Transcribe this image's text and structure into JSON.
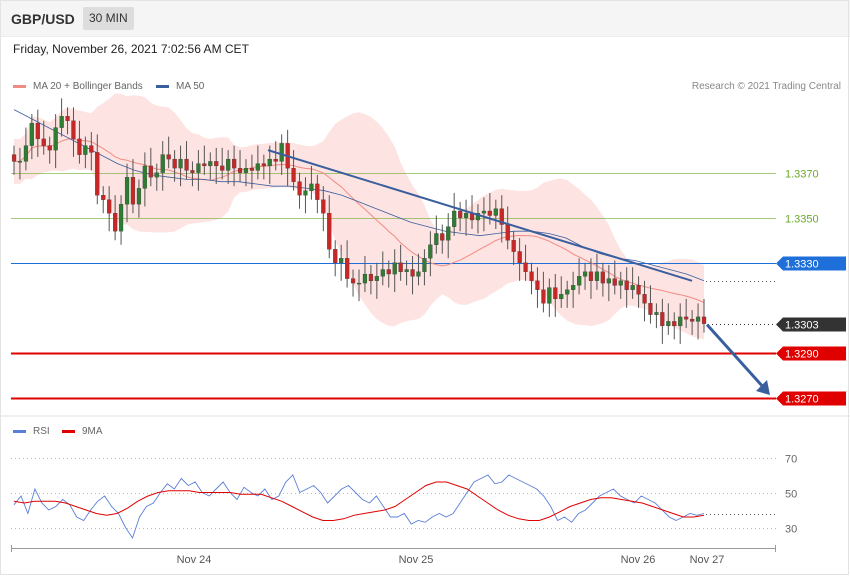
{
  "header": {
    "symbol": "GBP/USD",
    "timeframe": "30 MIN"
  },
  "timestamp": "Friday, November 26, 2021 7:02:56 AM CET",
  "price_legend": [
    {
      "label": "MA 20 + Bollinger Bands",
      "color": "#f28b82"
    },
    {
      "label": "MA 50",
      "color": "#3a5f9e"
    }
  ],
  "credit": "Research © 2021 Trading Central",
  "rsi_legend": [
    {
      "label": "RSI",
      "color": "#5b7fd6"
    },
    {
      "label": "9MA",
      "color": "#e00000"
    }
  ],
  "chart_data": [
    {
      "type": "candlestick",
      "symbol": "GBP/USD",
      "timeframe": "30 MIN",
      "x_tick_labels": [
        "Nov 24",
        "Nov 25",
        "Nov 26",
        "Nov 27"
      ],
      "ylim": [
        1.3262,
        1.342
      ],
      "close_path": [
        1.3375,
        1.3375,
        1.3382,
        1.3392,
        1.3385,
        1.3382,
        1.338,
        1.339,
        1.3395,
        1.3393,
        1.3385,
        1.3378,
        1.3382,
        1.3379,
        1.336,
        1.3358,
        1.3352,
        1.3344,
        1.3356,
        1.3368,
        1.3356,
        1.3363,
        1.3373,
        1.3368,
        1.337,
        1.3378,
        1.3376,
        1.3372,
        1.3376,
        1.3371,
        1.337,
        1.3374,
        1.3373,
        1.3375,
        1.3373,
        1.3371,
        1.3376,
        1.3372,
        1.337,
        1.3372,
        1.3371,
        1.3374,
        1.3373,
        1.3376,
        1.3375,
        1.3383,
        1.3372,
        1.3366,
        1.336,
        1.3362,
        1.3365,
        1.3358,
        1.3352,
        1.3336,
        1.333,
        1.3332,
        1.3323,
        1.3321,
        1.3321,
        1.3325,
        1.3322,
        1.3324,
        1.3327,
        1.3325,
        1.333,
        1.3326,
        1.3327,
        1.3324,
        1.3326,
        1.3332,
        1.3338,
        1.3343,
        1.334,
        1.3346,
        1.3353,
        1.335,
        1.3352,
        1.3349,
        1.3352,
        1.3353,
        1.3351,
        1.3354,
        1.3347,
        1.334,
        1.3335,
        1.333,
        1.3326,
        1.3322,
        1.3318,
        1.3312,
        1.3319,
        1.3314,
        1.3316,
        1.3318,
        1.332,
        1.3324,
        1.3326,
        1.3322,
        1.3326,
        1.3321,
        1.3323,
        1.332,
        1.3322,
        1.3318,
        1.332,
        1.3316,
        1.3312,
        1.3307,
        1.3308,
        1.3302,
        1.3304,
        1.3302,
        1.3306,
        1.3305,
        1.3304,
        1.3306,
        1.3303
      ],
      "ma50_path": [
        1.3398,
        1.3394,
        1.339,
        1.3386,
        1.3382,
        1.3378,
        1.3374,
        1.3371,
        1.3369,
        1.3368,
        1.3367,
        1.3367,
        1.3366,
        1.3366,
        1.3365,
        1.3364,
        1.3364,
        1.3363,
        1.3362,
        1.336,
        1.3357,
        1.3354,
        1.3351,
        1.3348,
        1.3346,
        1.3344,
        1.3343,
        1.3342,
        1.3343,
        1.3344,
        1.3344,
        1.3343,
        1.3341,
        1.3337,
        1.3334,
        1.3332,
        1.3331,
        1.3329,
        1.3327,
        1.3325,
        1.3322
      ],
      "levels": [
        {
          "price": "1.3370",
          "kind": "resistance",
          "color": "#6aaa2a"
        },
        {
          "price": "1.3350",
          "kind": "resistance",
          "color": "#6aaa2a"
        },
        {
          "price": "1.3330",
          "kind": "pivot",
          "color": "#1e6fd9"
        },
        {
          "price": "1.3303",
          "kind": "last",
          "color": "#333333"
        },
        {
          "price": "1.3290",
          "kind": "support",
          "color": "#e00000"
        },
        {
          "price": "1.3270",
          "kind": "support",
          "color": "#e00000"
        }
      ],
      "trendline": {
        "from": {
          "x": "Nov 24",
          "price": 1.338
        },
        "to": {
          "x": "Nov 26",
          "price": 1.3322
        }
      },
      "projection_arrow": {
        "from": 1.3303,
        "to": 1.327
      }
    },
    {
      "type": "line",
      "name": "RSI",
      "y_tick_labels": [
        "70",
        "50",
        "30"
      ],
      "ylim": [
        20,
        80
      ],
      "series": [
        {
          "name": "RSI",
          "values": [
            43,
            48,
            38,
            52,
            44,
            40,
            42,
            46,
            43,
            36,
            34,
            40,
            45,
            48,
            42,
            38,
            30,
            24,
            36,
            42,
            44,
            50,
            55,
            52,
            58,
            54,
            56,
            50,
            48,
            52,
            56,
            50,
            46,
            53,
            50,
            48,
            52,
            46,
            48,
            56,
            60,
            50,
            52,
            54,
            50,
            44,
            48,
            52,
            54,
            50,
            46,
            44,
            48,
            42,
            36,
            36,
            38,
            32,
            34,
            33,
            36,
            38,
            36,
            38,
            44,
            50,
            56,
            58,
            60,
            55,
            56,
            60,
            58,
            56,
            54,
            52,
            48,
            42,
            34,
            36,
            33,
            38,
            40,
            44,
            48,
            50,
            52,
            48,
            46,
            44,
            48,
            46,
            44,
            40,
            36,
            34,
            36,
            38,
            37,
            38
          ]
        },
        {
          "name": "9MA",
          "values": [
            45,
            44,
            45,
            45,
            45,
            44,
            42,
            40,
            38,
            37,
            38,
            41,
            45,
            48,
            50,
            51,
            51,
            51,
            50,
            50,
            50,
            50,
            49,
            49,
            49,
            47,
            45,
            42,
            39,
            36,
            34,
            34,
            35,
            37,
            38,
            39,
            40,
            42,
            46,
            50,
            54,
            56,
            56,
            54,
            52,
            48,
            44,
            40,
            37,
            35,
            34,
            34,
            36,
            39,
            42,
            44,
            46,
            47,
            47,
            46,
            45,
            44,
            42,
            40,
            38,
            36,
            36,
            37
          ]
        }
      ]
    }
  ]
}
